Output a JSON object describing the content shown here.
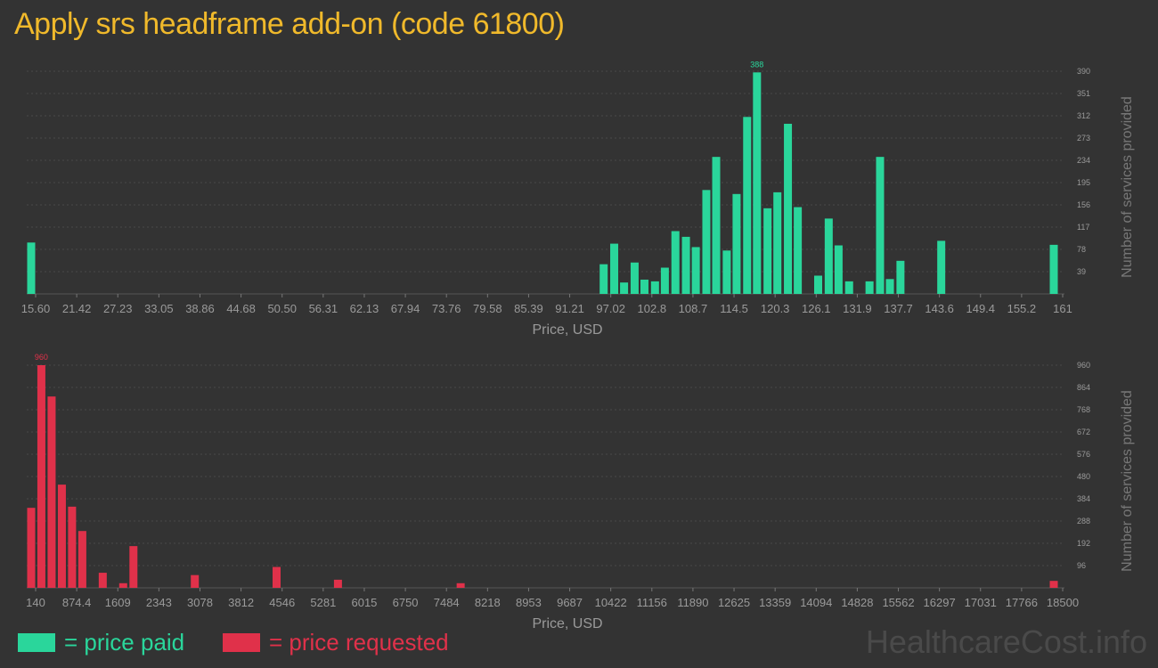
{
  "title": "Apply srs headframe add-on (code 61800)",
  "watermark": "HealthcareCost.info",
  "legend": {
    "paid": "= price paid",
    "requested": "= price requested"
  },
  "colors": {
    "paid": "#2ad69b",
    "requested": "#e0314a",
    "title": "#f0b92b",
    "background": "#333333"
  },
  "chart_data": [
    {
      "type": "bar",
      "name": "price paid",
      "xlabel": "Price, USD",
      "ylabel": "Number of services provided",
      "x_ticks": [
        "15.60",
        "21.42",
        "27.23",
        "33.05",
        "38.86",
        "44.68",
        "50.50",
        "56.31",
        "62.13",
        "67.94",
        "73.76",
        "79.58",
        "85.39",
        "91.21",
        "97.02",
        "102.8",
        "108.7",
        "114.5",
        "120.3",
        "126.1",
        "131.9",
        "137.7",
        "143.6",
        "149.4",
        "155.2",
        "161"
      ],
      "y_ticks": [
        39,
        78,
        117,
        156,
        195,
        234,
        273,
        312,
        351,
        390
      ],
      "xlim": [
        15.6,
        161
      ],
      "ylim": [
        0,
        390
      ],
      "peak_label": "388",
      "bars": [
        {
          "x": 15.6,
          "v": 90
        },
        {
          "x": 97.0,
          "v": 52
        },
        {
          "x": 98.5,
          "v": 88
        },
        {
          "x": 99.9,
          "v": 20
        },
        {
          "x": 101.4,
          "v": 55
        },
        {
          "x": 102.8,
          "v": 25
        },
        {
          "x": 104.3,
          "v": 22
        },
        {
          "x": 105.7,
          "v": 46
        },
        {
          "x": 107.2,
          "v": 110
        },
        {
          "x": 108.7,
          "v": 100
        },
        {
          "x": 110.1,
          "v": 82
        },
        {
          "x": 111.6,
          "v": 182
        },
        {
          "x": 113.0,
          "v": 240
        },
        {
          "x": 114.5,
          "v": 76
        },
        {
          "x": 115.9,
          "v": 175
        },
        {
          "x": 117.4,
          "v": 310
        },
        {
          "x": 118.8,
          "v": 388
        },
        {
          "x": 120.3,
          "v": 150
        },
        {
          "x": 121.7,
          "v": 178
        },
        {
          "x": 123.2,
          "v": 298
        },
        {
          "x": 124.6,
          "v": 152
        },
        {
          "x": 127.5,
          "v": 32
        },
        {
          "x": 129.0,
          "v": 132
        },
        {
          "x": 130.4,
          "v": 85
        },
        {
          "x": 131.9,
          "v": 22
        },
        {
          "x": 134.8,
          "v": 22
        },
        {
          "x": 136.3,
          "v": 240
        },
        {
          "x": 137.7,
          "v": 26
        },
        {
          "x": 139.2,
          "v": 58
        },
        {
          "x": 145.0,
          "v": 93
        },
        {
          "x": 161.0,
          "v": 86
        }
      ]
    },
    {
      "type": "bar",
      "name": "price requested",
      "xlabel": "Price, USD",
      "ylabel": "Number of services provided",
      "x_ticks": [
        "140",
        "874.4",
        "1609",
        "2343",
        "3078",
        "3812",
        "4546",
        "5281",
        "6015",
        "6750",
        "7484",
        "8218",
        "8953",
        "9687",
        "10422",
        "11156",
        "11890",
        "12625",
        "13359",
        "14094",
        "14828",
        "15562",
        "16297",
        "17031",
        "17766",
        "18500"
      ],
      "y_ticks": [
        96,
        192,
        288,
        384,
        480,
        576,
        672,
        768,
        864,
        960
      ],
      "xlim": [
        140,
        18500
      ],
      "ylim": [
        0,
        960
      ],
      "peak_label": "960",
      "bars": [
        {
          "x": 140,
          "v": 345
        },
        {
          "x": 323,
          "v": 960
        },
        {
          "x": 507,
          "v": 825
        },
        {
          "x": 691,
          "v": 445
        },
        {
          "x": 874,
          "v": 350
        },
        {
          "x": 1058,
          "v": 245
        },
        {
          "x": 1425,
          "v": 65
        },
        {
          "x": 1792,
          "v": 20
        },
        {
          "x": 1976,
          "v": 180
        },
        {
          "x": 3078,
          "v": 55
        },
        {
          "x": 4546,
          "v": 90
        },
        {
          "x": 5648,
          "v": 35
        },
        {
          "x": 7851,
          "v": 20
        },
        {
          "x": 18500,
          "v": 30
        }
      ]
    }
  ]
}
